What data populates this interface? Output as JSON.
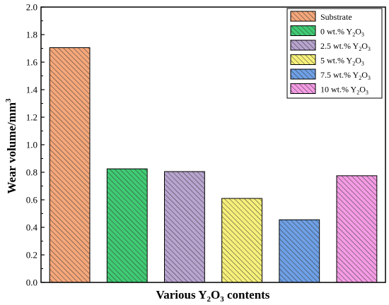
{
  "chart_data": {
    "type": "bar",
    "categories": [
      "Substrate",
      "0 wt.% Y2O3",
      "2.5 wt.% Y2O3",
      "5 wt.% Y2O3",
      "7.5 wt.% Y2O3",
      "10 wt.% Y2O3"
    ],
    "values": [
      1.705,
      0.825,
      0.805,
      0.61,
      0.455,
      0.775
    ],
    "ylim": [
      0,
      2.0
    ],
    "yticks": [
      "0.0",
      "0.2",
      "0.4",
      "0.6",
      "0.8",
      "1.0",
      "1.2",
      "1.4",
      "1.6",
      "1.8",
      "2.0"
    ],
    "xlabel": "Various Y2O3 contents",
    "ylabel": "Wear volume/mm3",
    "colors": [
      "#f5a77a",
      "#3fcb73",
      "#b8a4cf",
      "#f6f07a",
      "#6ea0e6",
      "#f49be4"
    ],
    "hatch": "diagonal",
    "grid": false,
    "legend_position": "top-right",
    "legend": [
      {
        "prefix": "Substrate",
        "suffix": ""
      },
      {
        "prefix": "0 wt.% Y",
        "suffix": "O"
      },
      {
        "prefix": "2.5 wt.% Y",
        "suffix": "O"
      },
      {
        "prefix": "5 wt.% Y",
        "suffix": "O"
      },
      {
        "prefix": "7.5 wt.% Y",
        "suffix": "O"
      },
      {
        "prefix": "10 wt.% Y",
        "suffix": "O"
      }
    ]
  }
}
